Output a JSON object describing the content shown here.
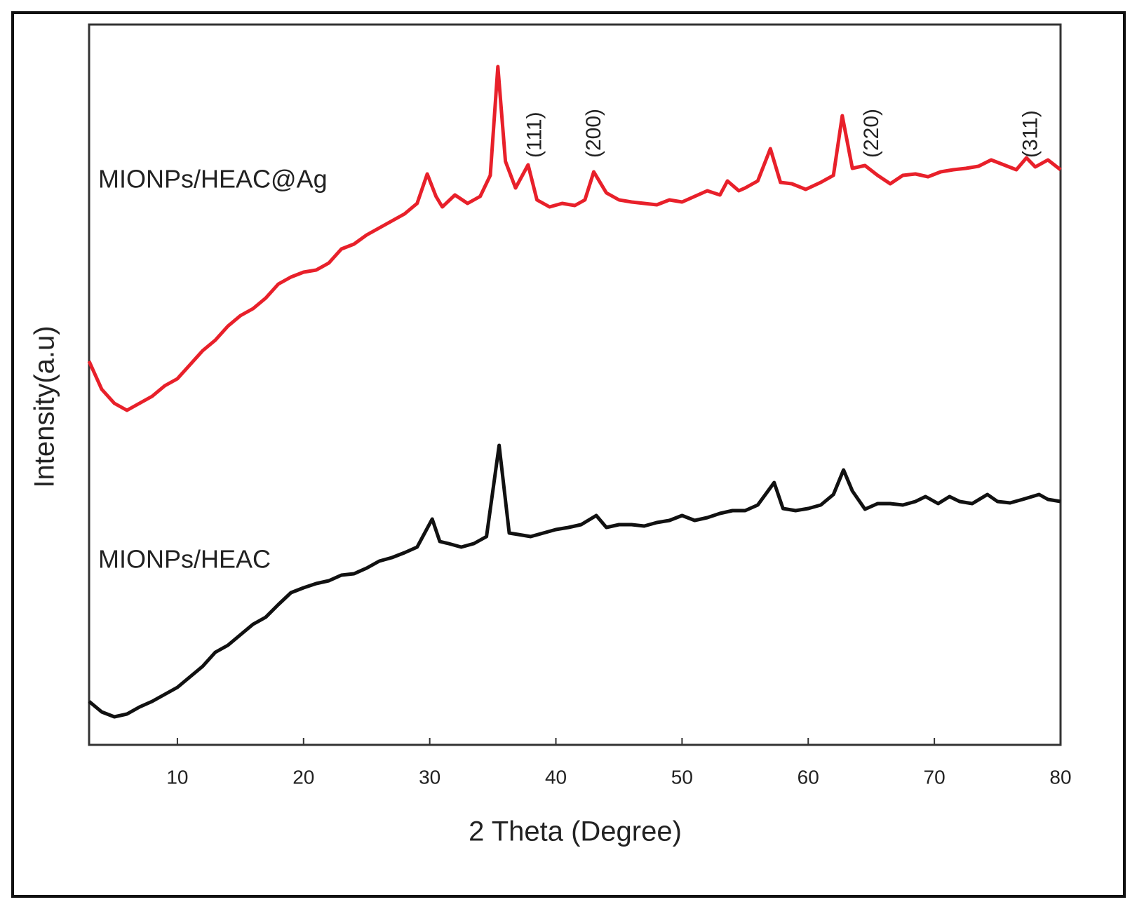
{
  "chart_data": {
    "type": "line",
    "xlabel": "2 Theta (Degree)",
    "ylabel": "Intensity(a.u)",
    "xlim": [
      3,
      80
    ],
    "xticks": [
      10,
      20,
      30,
      40,
      50,
      60,
      70,
      80
    ],
    "ylim": [
      0,
      1027
    ],
    "annotations": [
      {
        "text": "(111)",
        "x": 38.4
      },
      {
        "text": "(200)",
        "x": 43.1
      },
      {
        "text": "(220)",
        "x": 65.1
      },
      {
        "text": "(311)",
        "x": 77.7
      }
    ],
    "series": [
      {
        "name": "MIONPs/HEAC@Ag",
        "color": "#e8202a",
        "x": [
          3,
          4,
          5,
          6,
          7,
          8,
          9,
          10,
          11,
          12,
          13,
          14,
          15,
          16,
          17,
          18,
          19,
          20,
          21,
          22,
          23,
          24,
          25,
          26,
          27,
          28,
          29,
          29.8,
          30.5,
          31,
          32,
          33,
          34,
          34.8,
          35.4,
          36,
          36.8,
          37.8,
          38.5,
          39.5,
          40.5,
          41.5,
          42.3,
          43,
          44,
          45,
          46,
          47,
          48,
          49,
          50,
          51,
          52,
          53,
          53.6,
          54.5,
          55,
          56,
          57,
          57.8,
          58.7,
          59.8,
          61,
          62,
          62.7,
          63.5,
          64.5,
          65.5,
          66.5,
          67.5,
          68.5,
          69.5,
          70.5,
          71.5,
          72.5,
          73.5,
          74.5,
          75.5,
          76.5,
          77.3,
          78,
          79,
          80
        ],
        "values": [
          547,
          507,
          487,
          477,
          487,
          497,
          512,
          522,
          542,
          562,
          577,
          597,
          612,
          622,
          637,
          657,
          667,
          674,
          677,
          687,
          707,
          714,
          727,
          737,
          747,
          757,
          772,
          814,
          782,
          767,
          784,
          772,
          782,
          812,
          967,
          832,
          794,
          827,
          777,
          767,
          772,
          769,
          777,
          817,
          787,
          777,
          774,
          772,
          770,
          777,
          774,
          782,
          790,
          784,
          804,
          790,
          794,
          804,
          850,
          802,
          800,
          792,
          802,
          812,
          897,
          822,
          826,
          812,
          800,
          812,
          814,
          810,
          817,
          820,
          822,
          825,
          834,
          827,
          820,
          837,
          824,
          834,
          820
        ]
      },
      {
        "name": "MIONPs/HEAC",
        "color": "#111111",
        "x": [
          3,
          4,
          5,
          6,
          7,
          8,
          9,
          10,
          11,
          12,
          13,
          14,
          15,
          16,
          17,
          18,
          19,
          20,
          21,
          22,
          23,
          24,
          25,
          26,
          27,
          28,
          29,
          30.2,
          30.8,
          31.5,
          32.5,
          33.5,
          34.5,
          35.5,
          36.3,
          37,
          38,
          39,
          40,
          41,
          42,
          43.2,
          44,
          45,
          46,
          47,
          48,
          49,
          50,
          51,
          52,
          53,
          54,
          55,
          56,
          57.3,
          58,
          59,
          60,
          61,
          62,
          62.8,
          63.5,
          64.5,
          65.5,
          66.5,
          67.5,
          68.5,
          69.3,
          70.3,
          71.2,
          72,
          73,
          74.2,
          75,
          76,
          77,
          78.3,
          79,
          80
        ],
        "values": [
          62,
          47,
          40,
          44,
          54,
          62,
          72,
          82,
          97,
          112,
          132,
          142,
          157,
          172,
          182,
          200,
          217,
          224,
          230,
          234,
          242,
          244,
          252,
          262,
          267,
          274,
          282,
          322,
          290,
          287,
          282,
          287,
          297,
          427,
          302,
          300,
          297,
          302,
          307,
          310,
          314,
          327,
          310,
          314,
          314,
          312,
          317,
          320,
          327,
          320,
          324,
          330,
          334,
          334,
          342,
          374,
          337,
          334,
          337,
          342,
          357,
          392,
          362,
          336,
          344,
          344,
          342,
          347,
          354,
          344,
          354,
          347,
          344,
          357,
          347,
          345,
          350,
          357,
          350,
          347
        ]
      }
    ]
  }
}
